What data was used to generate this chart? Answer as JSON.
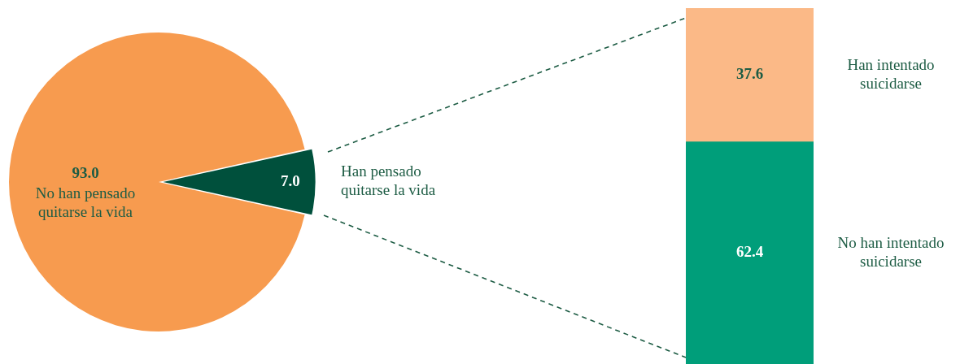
{
  "chart_data": [
    {
      "type": "pie",
      "categories": [
        "No han pensado quitarse la vida",
        "Han pensado quitarse la vida"
      ],
      "values": [
        93.0,
        7.0
      ],
      "value_labels": [
        "93.0",
        "7.0"
      ],
      "colors": [
        "#f79b4f",
        "#00503c"
      ]
    },
    {
      "type": "bar",
      "stacked": true,
      "categories": [
        null
      ],
      "tick_labels": false,
      "series": [
        {
          "name": "No han intentado suicidarse",
          "color": "#009e7a",
          "values": [
            62.4
          ],
          "value_labels": [
            "62.4"
          ]
        },
        {
          "name": "Han intentado suicidarse",
          "color": "#fbb987",
          "values": [
            37.6
          ],
          "value_labels": [
            "37.6"
          ]
        }
      ]
    }
  ]
}
